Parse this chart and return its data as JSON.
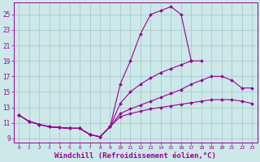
{
  "bg_color": "#cce8e8",
  "grid_color": "#aacccc",
  "line_color": "#990099",
  "marker_color": "#990099",
  "xlabel": "Windchill (Refroidissement éolien,°C)",
  "xlabel_fontsize": 6.5,
  "ytick_labels": [
    "9",
    "11",
    "13",
    "15",
    "17",
    "19",
    "21",
    "23",
    "25"
  ],
  "ytick_values": [
    9,
    11,
    13,
    15,
    17,
    19,
    21,
    23,
    25
  ],
  "xtick_labels": [
    "0",
    "1",
    "2",
    "3",
    "4",
    "5",
    "6",
    "7",
    "8",
    "9",
    "10",
    "11",
    "12",
    "13",
    "14",
    "15",
    "16",
    "17",
    "18",
    "19",
    "20",
    "21",
    "22",
    "23"
  ],
  "xlim_min": -0.5,
  "xlim_max": 23.5,
  "ylim_min": 8.5,
  "ylim_max": 26.5,
  "series": [
    {
      "x": [
        0,
        1,
        2,
        3,
        4,
        5,
        6,
        7,
        8,
        9,
        10,
        11,
        12,
        13,
        14,
        15,
        16,
        17
      ],
      "y": [
        12.0,
        11.2,
        10.8,
        10.5,
        10.4,
        10.3,
        10.3,
        9.5,
        9.2,
        10.5,
        16.0,
        19.0,
        22.5,
        25.0,
        25.5,
        26.0,
        25.0,
        19.0
      ],
      "marker": "D",
      "markersize": 2.0,
      "linewidth": 0.8
    },
    {
      "x": [
        0,
        1,
        2,
        3,
        4,
        5,
        6,
        7,
        8,
        9,
        10,
        11,
        12,
        13,
        14,
        15,
        16,
        17,
        18
      ],
      "y": [
        12.0,
        11.2,
        10.8,
        10.5,
        10.4,
        10.3,
        10.3,
        9.5,
        9.2,
        10.5,
        13.5,
        15.0,
        16.0,
        16.8,
        17.5,
        18.0,
        18.5,
        19.0,
        19.0
      ],
      "marker": "D",
      "markersize": 2.0,
      "linewidth": 0.8
    },
    {
      "x": [
        0,
        1,
        2,
        3,
        4,
        5,
        6,
        7,
        8,
        9,
        10,
        11,
        12,
        13,
        14,
        15,
        16,
        17,
        18,
        19,
        20,
        21,
        22,
        23
      ],
      "y": [
        12.0,
        11.2,
        10.8,
        10.5,
        10.4,
        10.3,
        10.3,
        9.5,
        9.2,
        10.5,
        12.2,
        12.8,
        13.3,
        13.8,
        14.3,
        14.8,
        15.3,
        16.0,
        16.5,
        17.0,
        17.0,
        16.5,
        15.5,
        15.5
      ],
      "marker": "D",
      "markersize": 2.0,
      "linewidth": 0.8
    },
    {
      "x": [
        0,
        1,
        2,
        3,
        4,
        5,
        6,
        7,
        8,
        9,
        10,
        11,
        12,
        13,
        14,
        15,
        16,
        17,
        18,
        19,
        20,
        21,
        22,
        23
      ],
      "y": [
        12.0,
        11.2,
        10.8,
        10.5,
        10.4,
        10.3,
        10.3,
        9.5,
        9.2,
        10.5,
        11.8,
        12.2,
        12.5,
        12.8,
        13.0,
        13.2,
        13.4,
        13.6,
        13.8,
        14.0,
        14.0,
        14.0,
        13.8,
        13.5
      ],
      "marker": "D",
      "markersize": 2.0,
      "linewidth": 0.8
    }
  ]
}
